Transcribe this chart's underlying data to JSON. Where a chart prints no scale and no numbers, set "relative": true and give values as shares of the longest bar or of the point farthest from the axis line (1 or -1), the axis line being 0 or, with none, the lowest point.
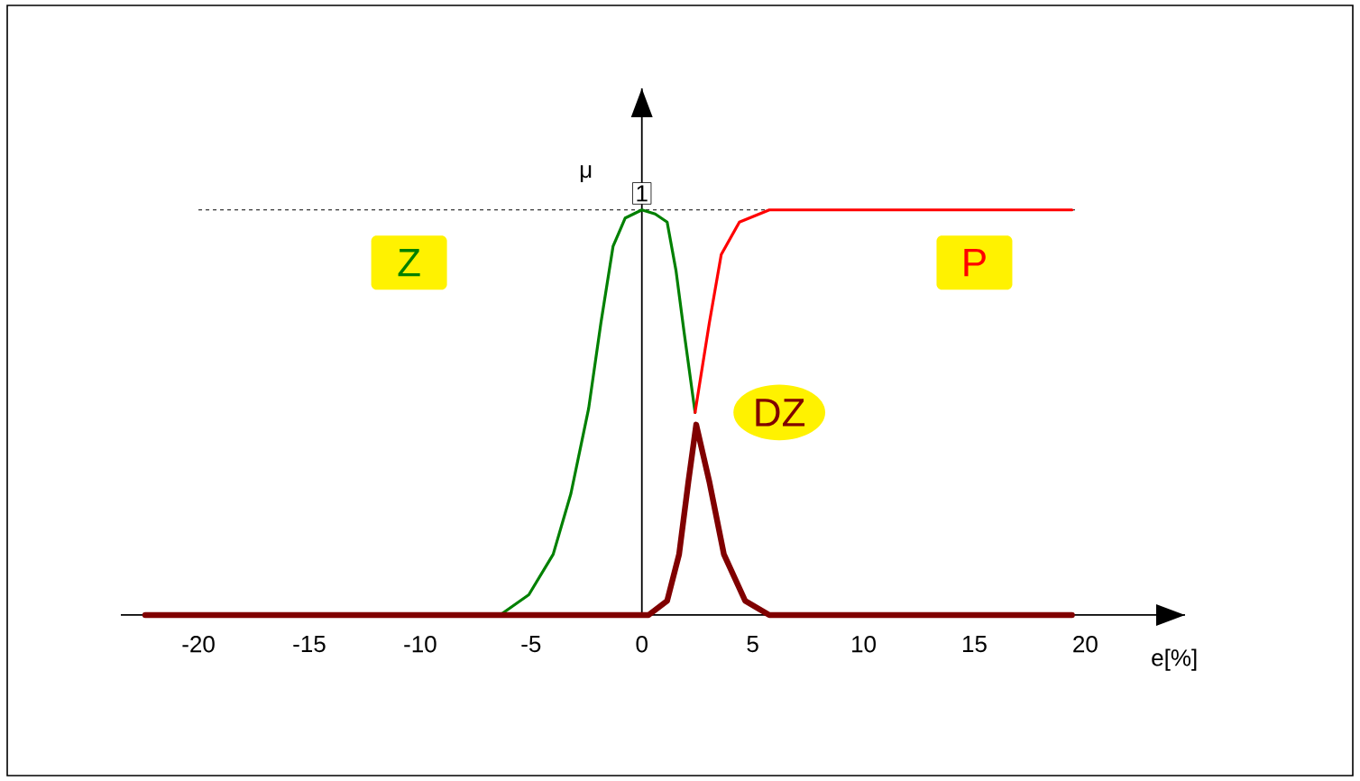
{
  "chart_data": {
    "type": "line",
    "relative": true,
    "xlabel": "e[%]",
    "ylabel": "μ",
    "xlim": [
      -23.5,
      24.5
    ],
    "xticks": [
      -20,
      -15,
      -10,
      -5,
      0,
      5,
      10,
      15,
      20
    ],
    "marker": "none",
    "line_style": "solid",
    "ref_lines": [
      {
        "axis": "y",
        "value": 1,
        "label": "1",
        "line_style": "dashed",
        "color": "#000000"
      }
    ],
    "series": [
      {
        "name": "Z",
        "color": "#008000",
        "x": [
          -6.4,
          -5.1,
          -4.0,
          -3.2,
          -2.4,
          -1.85,
          -1.3,
          -0.75,
          0,
          0.6,
          1.14,
          1.54,
          1.9,
          2.4
        ],
        "values": [
          0,
          0.05,
          0.15,
          0.3,
          0.51,
          0.72,
          0.91,
          0.98,
          1,
          0.99,
          0.97,
          0.85,
          0.7,
          0.5
        ]
      },
      {
        "name": "P",
        "color": "#ff0000",
        "x": [
          2.4,
          3.04,
          3.58,
          4.4,
          5.75,
          19.4
        ],
        "values": [
          0.5,
          0.72,
          0.89,
          0.97,
          1,
          1
        ]
      },
      {
        "name": "DZ",
        "color": "#800000",
        "x": [
          -22.4,
          0,
          0.3,
          1.14,
          1.68,
          2.1,
          2.45,
          3.04,
          3.7,
          4.66,
          5.75,
          19.4
        ],
        "values": [
          0,
          0,
          0,
          0.035,
          0.15,
          0.33,
          0.47,
          0.33,
          0.15,
          0.035,
          0,
          0
        ]
      }
    ]
  }
}
